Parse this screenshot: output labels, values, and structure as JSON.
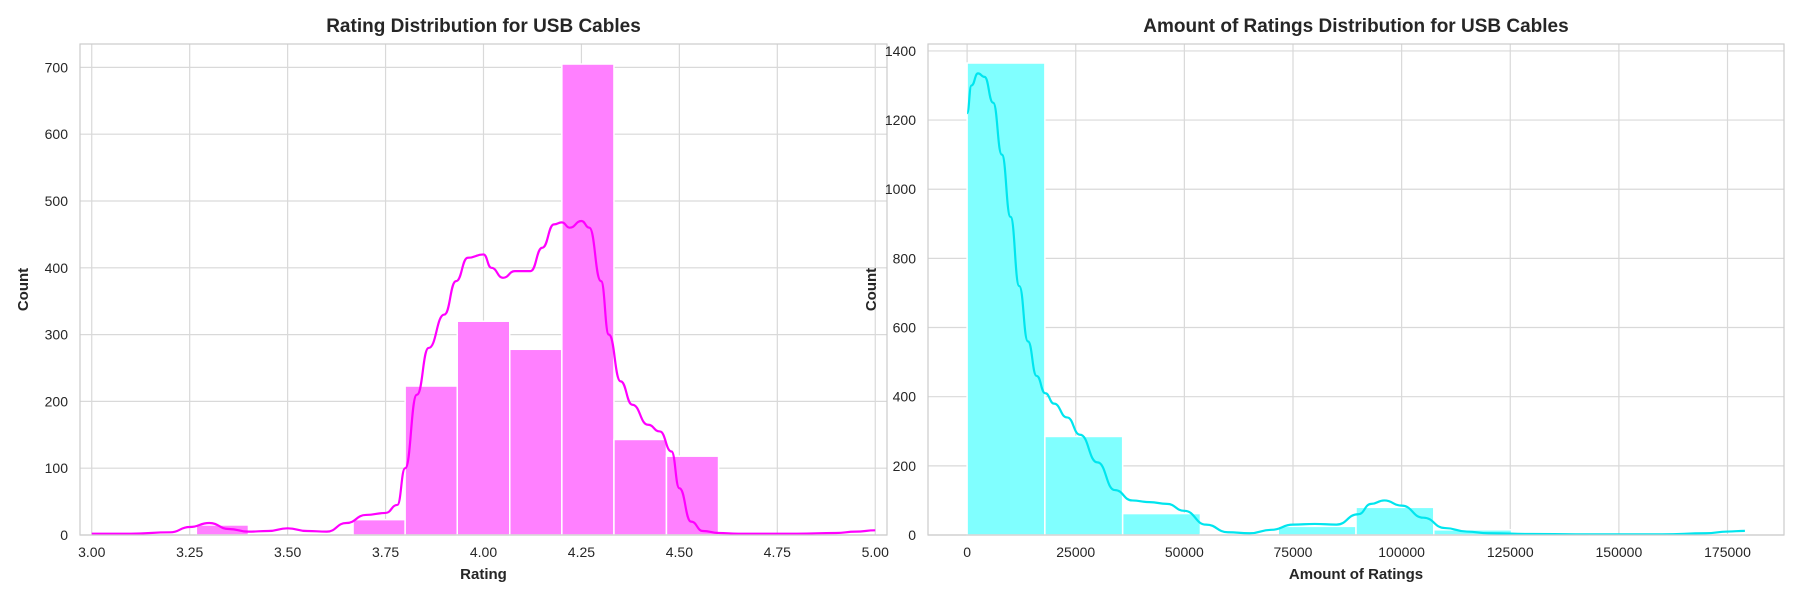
{
  "chart_data": [
    {
      "type": "histogram",
      "title": "Rating Distribution for USB Cables",
      "xlabel": "Rating",
      "ylabel": "Count",
      "xlim": [
        2.97,
        5.03
      ],
      "ylim": [
        0,
        735
      ],
      "xticks": [
        "3.00",
        "3.25",
        "3.50",
        "3.75",
        "4.00",
        "4.25",
        "4.50",
        "4.75",
        "5.00"
      ],
      "xtick_values": [
        3.0,
        3.25,
        3.5,
        3.75,
        4.0,
        4.25,
        4.5,
        4.75,
        5.0
      ],
      "yticks": [
        "0",
        "100",
        "200",
        "300",
        "400",
        "500",
        "600",
        "700"
      ],
      "ytick_values": [
        0,
        100,
        200,
        300,
        400,
        500,
        600,
        700
      ],
      "bins": [
        {
          "x0": 3.267,
          "x1": 3.4,
          "count": 15
        },
        {
          "x0": 3.667,
          "x1": 3.8,
          "count": 23
        },
        {
          "x0": 3.8,
          "x1": 3.933,
          "count": 223
        },
        {
          "x0": 3.933,
          "x1": 4.067,
          "count": 320
        },
        {
          "x0": 4.067,
          "x1": 4.2,
          "count": 278
        },
        {
          "x0": 4.2,
          "x1": 4.333,
          "count": 705
        },
        {
          "x0": 4.333,
          "x1": 4.467,
          "count": 143
        },
        {
          "x0": 4.467,
          "x1": 4.6,
          "count": 118
        }
      ],
      "kde": {
        "x": [
          3.0,
          3.1,
          3.2,
          3.25,
          3.3,
          3.35,
          3.4,
          3.45,
          3.5,
          3.55,
          3.6,
          3.65,
          3.7,
          3.75,
          3.78,
          3.8,
          3.83,
          3.86,
          3.9,
          3.93,
          3.96,
          4.0,
          4.02,
          4.05,
          4.08,
          4.12,
          4.15,
          4.18,
          4.2,
          4.22,
          4.25,
          4.27,
          4.3,
          4.32,
          4.35,
          4.38,
          4.42,
          4.45,
          4.48,
          4.5,
          4.53,
          4.56,
          4.6,
          4.65,
          4.7,
          4.8,
          4.9,
          4.95,
          5.0
        ],
        "y": [
          2,
          2,
          4,
          12,
          18,
          9,
          5,
          6,
          10,
          6,
          5,
          18,
          30,
          33,
          45,
          100,
          210,
          280,
          330,
          380,
          415,
          420,
          400,
          385,
          395,
          395,
          430,
          465,
          468,
          460,
          470,
          460,
          380,
          300,
          230,
          195,
          165,
          155,
          125,
          70,
          20,
          6,
          3,
          2,
          2,
          2,
          3,
          5,
          7
        ]
      },
      "color": "#ff00ff",
      "bar_fill": "#ff80ff"
    },
    {
      "type": "histogram",
      "title": "Amount of Ratings Distribution for USB Cables",
      "xlabel": "Amount of Ratings",
      "ylabel": "Count",
      "xlim": [
        -9000,
        188000
      ],
      "ylim": [
        0,
        1420
      ],
      "xticks": [
        "0",
        "25000",
        "50000",
        "75000",
        "100000",
        "125000",
        "150000",
        "175000"
      ],
      "xtick_values": [
        0,
        25000,
        50000,
        75000,
        100000,
        125000,
        150000,
        175000
      ],
      "yticks": [
        "0",
        "200",
        "400",
        "600",
        "800",
        "1000",
        "1200",
        "1400"
      ],
      "ytick_values": [
        0,
        200,
        400,
        600,
        800,
        1000,
        1200,
        1400
      ],
      "bins": [
        {
          "x0": 0,
          "x1": 17900,
          "count": 1365
        },
        {
          "x0": 17900,
          "x1": 35800,
          "count": 285
        },
        {
          "x0": 35800,
          "x1": 53700,
          "count": 62
        },
        {
          "x0": 53700,
          "x1": 71600,
          "count": 3
        },
        {
          "x0": 71600,
          "x1": 89500,
          "count": 25
        },
        {
          "x0": 89500,
          "x1": 107400,
          "count": 80
        },
        {
          "x0": 107400,
          "x1": 125300,
          "count": 15
        },
        {
          "x0": 125300,
          "x1": 143200,
          "count": 2
        },
        {
          "x0": 143200,
          "x1": 161100,
          "count": 1
        },
        {
          "x0": 161100,
          "x1": 179000,
          "count": 1
        }
      ],
      "kde": {
        "x": [
          0,
          1000,
          2500,
          4000,
          6000,
          8000,
          10000,
          12000,
          14000,
          16000,
          18000,
          20000,
          23000,
          26000,
          30000,
          34000,
          38000,
          42000,
          46000,
          50000,
          55000,
          60000,
          65000,
          70000,
          75000,
          80000,
          85000,
          90000,
          93000,
          96000,
          100000,
          105000,
          110000,
          115000,
          120000,
          130000,
          140000,
          150000,
          160000,
          170000,
          175000,
          179000
        ],
        "y": [
          1220,
          1300,
          1335,
          1325,
          1250,
          1100,
          920,
          720,
          560,
          460,
          410,
          380,
          340,
          290,
          210,
          130,
          100,
          95,
          90,
          70,
          30,
          8,
          5,
          15,
          30,
          32,
          30,
          60,
          90,
          100,
          85,
          50,
          20,
          10,
          5,
          3,
          2,
          2,
          2,
          5,
          10,
          12
        ]
      },
      "color": "#00e5ee",
      "bar_fill": "#80ffff"
    }
  ]
}
